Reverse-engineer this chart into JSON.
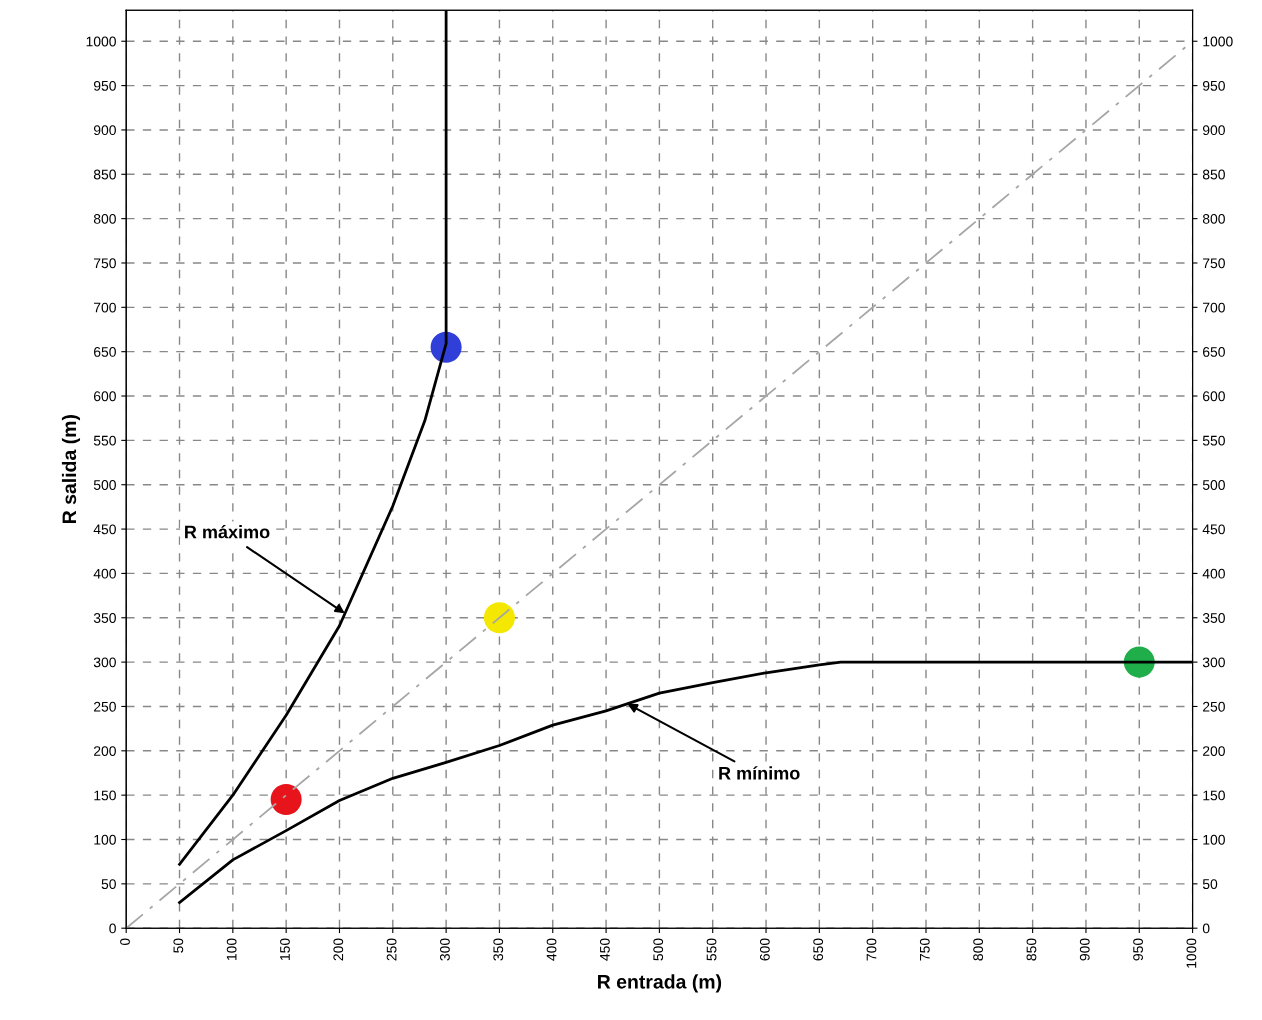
{
  "chart_data": {
    "type": "line",
    "xlabel": "R entrada (m)",
    "ylabel": "R salida (m)",
    "xlim": [
      0,
      1000
    ],
    "xticks": [
      0,
      50,
      100,
      150,
      200,
      250,
      300,
      350,
      400,
      450,
      500,
      550,
      600,
      650,
      700,
      750,
      800,
      850,
      900,
      950,
      1000
    ],
    "ylim": [
      0,
      1035
    ],
    "yticks": [
      0,
      50,
      100,
      150,
      200,
      250,
      300,
      350,
      400,
      450,
      500,
      550,
      600,
      650,
      700,
      750,
      800,
      850,
      900,
      950,
      1000
    ],
    "y2lim": [
      0,
      1035
    ],
    "y2ticks": [
      0,
      50,
      100,
      150,
      200,
      250,
      300,
      350,
      400,
      450,
      500,
      550,
      600,
      650,
      700,
      750,
      800,
      850,
      900,
      950,
      1000
    ],
    "grid": true,
    "legend": false,
    "series": [
      {
        "color": "#000000",
        "line_style": "solid",
        "x": [
          50,
          100,
          150,
          200,
          250,
          280,
          300,
          300
        ],
        "values": [
          72,
          150,
          240,
          341,
          476,
          572,
          659,
          1035
        ]
      },
      {
        "color": "#000000",
        "line_style": "solid",
        "x": [
          50,
          100,
          150,
          200,
          250,
          300,
          350,
          400,
          450,
          500,
          550,
          600,
          650,
          670,
          1000
        ],
        "values": [
          29,
          77,
          110,
          144,
          169,
          187,
          206,
          229,
          245,
          265,
          277,
          288,
          297,
          300,
          300
        ]
      },
      {
        "color": "#a6a6a6",
        "line_style": "dashed",
        "x": [
          0,
          1000
        ],
        "values": [
          0,
          1000
        ]
      },
      {
        "type": "scatter",
        "marker": "circle",
        "x": [
          150,
          300,
          350,
          950
        ],
        "values": [
          145,
          655,
          350,
          300
        ],
        "colors": [
          "#e8141b",
          "#2f3fd8",
          "#f5e800",
          "#1fae4a"
        ]
      }
    ],
    "annotations": [
      {
        "text": "R máximo",
        "x": 205,
        "y": 355
      },
      {
        "text": "R mínimo",
        "x": 470,
        "y": 253
      }
    ]
  }
}
